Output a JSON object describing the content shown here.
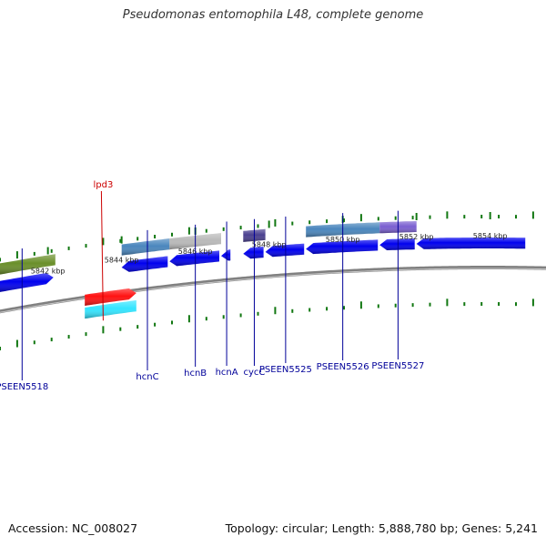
{
  "title": "Pseudomonas entomophila L48, complete genome",
  "footer": {
    "accession": "Accession: NC_008027",
    "topology": "Topology: circular; Length: 5,888,780 bp; Genes: 5,241"
  },
  "colors": {
    "gene_blue": "#0000ee",
    "gene_blue_dark": "#000099",
    "track_cyan": "#33e5ff",
    "track_red": "#ff1111",
    "track_olive": "#6a8f2a",
    "track_steel": "#4a86bd",
    "track_gray": "#b9b9b9",
    "track_purple": "#4a3f8f",
    "track_violet": "#7a5fd0",
    "tick_green": "#117711",
    "backbone": "#808080",
    "label_blue": "#000099",
    "label_red": "#cc0000"
  },
  "ruler": {
    "unit": "kbp",
    "ticks": [
      {
        "kbp": 5842,
        "label": "5842 kbp"
      },
      {
        "kbp": 5844,
        "label": "5844 kbp"
      },
      {
        "kbp": 5846,
        "label": "5846 kbp"
      },
      {
        "kbp": 5848,
        "label": "5848 kbp"
      },
      {
        "kbp": 5850,
        "label": "5850 kbp"
      },
      {
        "kbp": 5852,
        "label": "5852 kbp"
      },
      {
        "kbp": 5854,
        "label": "5854 kbp"
      }
    ]
  },
  "genes": [
    {
      "start": 5840.7,
      "end": 5842.2,
      "strand": "+"
    },
    {
      "start": 5844.0,
      "end": 5845.3,
      "strand": "-"
    },
    {
      "start": 5845.3,
      "end": 5846.7,
      "strand": "-"
    },
    {
      "start": 5846.7,
      "end": 5847.0,
      "strand": "-"
    },
    {
      "start": 5847.3,
      "end": 5847.9,
      "strand": "-"
    },
    {
      "start": 5847.9,
      "end": 5849.0,
      "strand": "-"
    },
    {
      "start": 5849.0,
      "end": 5851.0,
      "strand": "-"
    },
    {
      "start": 5851.0,
      "end": 5852.0,
      "strand": "-"
    },
    {
      "start": 5852.0,
      "end": 5855.0,
      "strand": "-"
    }
  ],
  "features": [
    {
      "start": 5843.0,
      "end": 5844.4,
      "color": "track_cyan",
      "track": "outer2"
    },
    {
      "start": 5843.0,
      "end": 5844.4,
      "color": "track_red",
      "track": "outer1"
    },
    {
      "start": 5840.7,
      "end": 5842.2,
      "color": "track_olive",
      "track": "inner"
    },
    {
      "start": 5844.0,
      "end": 5845.3,
      "color": "track_steel",
      "track": "inner"
    },
    {
      "start": 5845.3,
      "end": 5846.7,
      "color": "track_gray",
      "track": "inner"
    },
    {
      "start": 5847.3,
      "end": 5847.9,
      "color": "track_purple",
      "track": "inner"
    },
    {
      "start": 5849.0,
      "end": 5851.0,
      "color": "track_steel",
      "track": "inner"
    },
    {
      "start": 5851.0,
      "end": 5852.0,
      "color": "track_violet",
      "track": "inner"
    }
  ],
  "labels": [
    {
      "text": "PSEEN5518",
      "kbp": 5841.3,
      "color": "label_blue",
      "side": "below"
    },
    {
      "text": "hcnC",
      "kbp": 5844.7,
      "color": "label_blue",
      "side": "below"
    },
    {
      "text": "hcnB",
      "kbp": 5846.0,
      "color": "label_blue",
      "side": "below"
    },
    {
      "text": "hcnA",
      "kbp": 5846.85,
      "color": "label_blue",
      "side": "below"
    },
    {
      "text": "cycC",
      "kbp": 5847.6,
      "color": "label_blue",
      "side": "below"
    },
    {
      "text": "PSEEN5525",
      "kbp": 5848.45,
      "color": "label_blue",
      "side": "below"
    },
    {
      "text": "PSEEN5526",
      "kbp": 5850.0,
      "color": "label_blue",
      "side": "below"
    },
    {
      "text": "PSEEN5527",
      "kbp": 5851.5,
      "color": "label_blue",
      "side": "below"
    },
    {
      "text": "lpd3",
      "kbp": 5843.5,
      "color": "label_red",
      "side": "above"
    }
  ]
}
